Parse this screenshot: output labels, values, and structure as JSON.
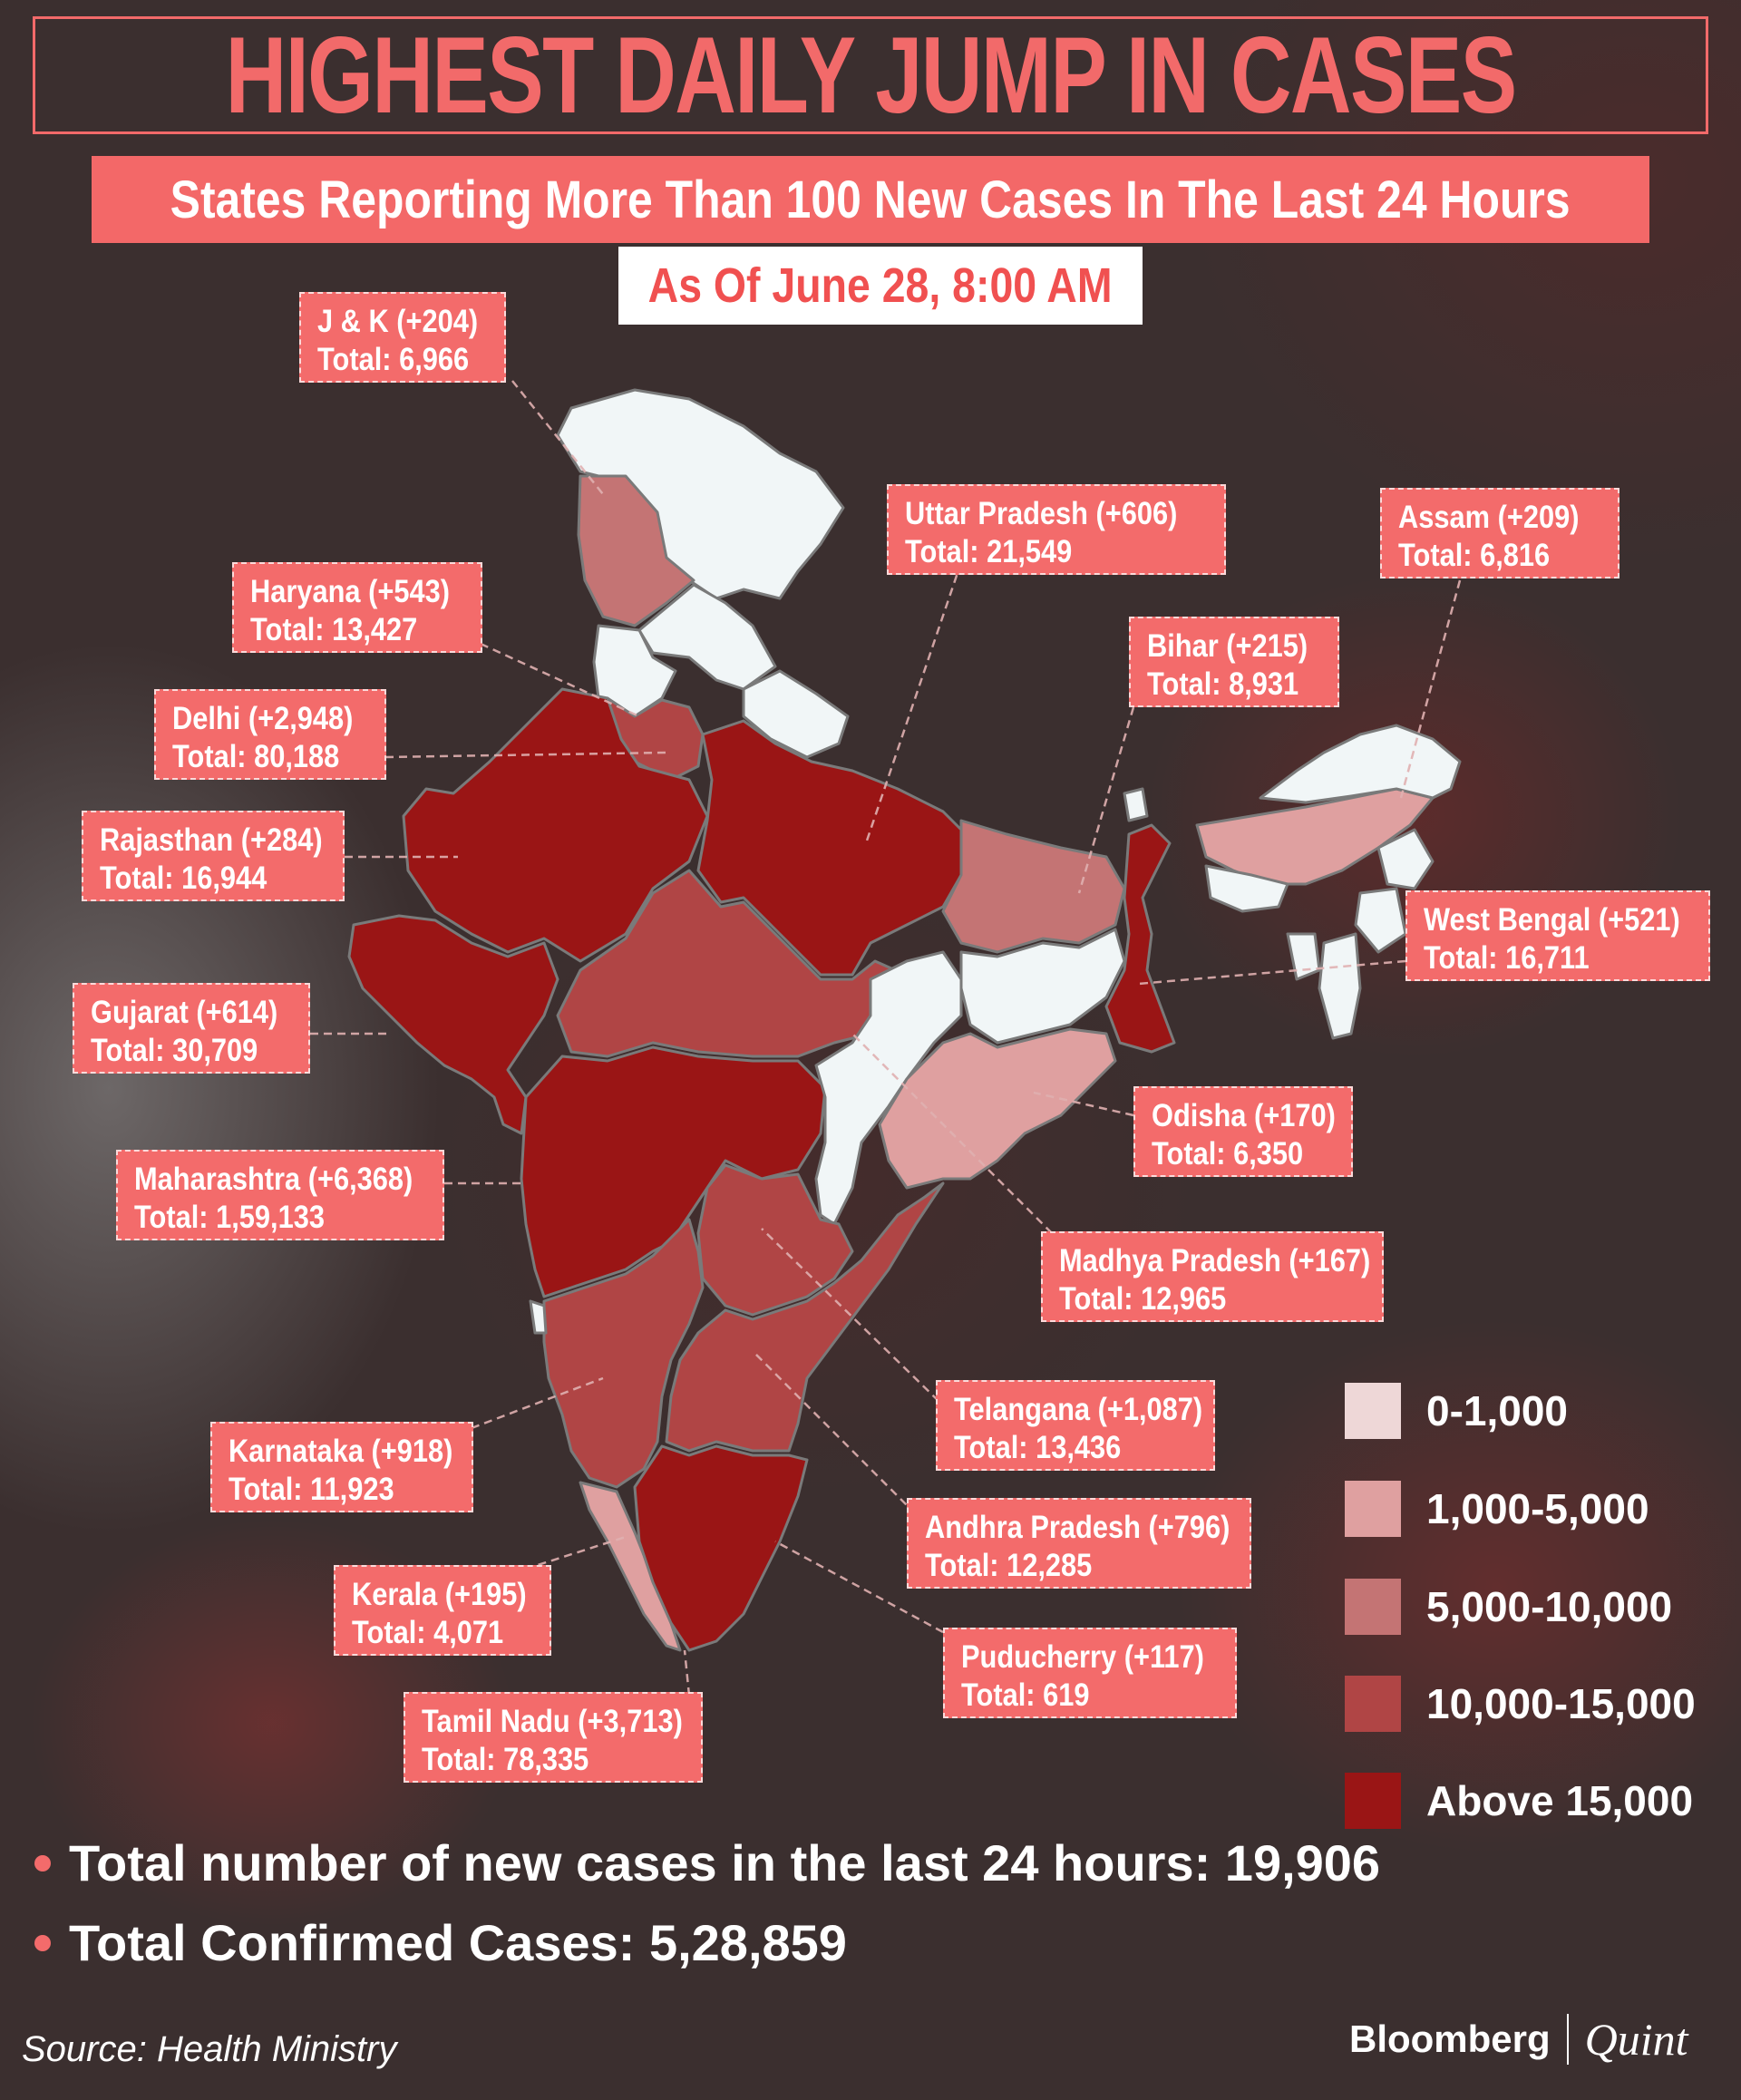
{
  "header": {
    "title": "HIGHEST DAILY JUMP IN CASES",
    "subtitle": "States Reporting More Than 100 New Cases In The Last 24 Hours",
    "date": "As Of June 28, 8:00 AM"
  },
  "states": [
    {
      "name": "J & K",
      "new_cases": "+204",
      "total": "6,966",
      "line1": "J & K (+204)",
      "line2": "Total: 6,966"
    },
    {
      "name": "Uttar Pradesh",
      "new_cases": "+606",
      "total": "21,549",
      "line1": "Uttar Pradesh (+606)",
      "line2": "Total: 21,549"
    },
    {
      "name": "Assam",
      "new_cases": "+209",
      "total": "6,816",
      "line1": "Assam (+209)",
      "line2": "Total: 6,816"
    },
    {
      "name": "Haryana",
      "new_cases": "+543",
      "total": "13,427",
      "line1": "Haryana (+543)",
      "line2": "Total: 13,427"
    },
    {
      "name": "Bihar",
      "new_cases": "+215",
      "total": "8,931",
      "line1": "Bihar (+215)",
      "line2": "Total: 8,931"
    },
    {
      "name": "Delhi",
      "new_cases": "+2,948",
      "total": "80,188",
      "line1": "Delhi (+2,948)",
      "line2": "Total: 80,188"
    },
    {
      "name": "Rajasthan",
      "new_cases": "+284",
      "total": "16,944",
      "line1": "Rajasthan (+284)",
      "line2": "Total: 16,944"
    },
    {
      "name": "West Bengal",
      "new_cases": "+521",
      "total": "16,711",
      "line1": "West Bengal (+521)",
      "line2": "Total: 16,711"
    },
    {
      "name": "Gujarat",
      "new_cases": "+614",
      "total": "30,709",
      "line1": "Gujarat (+614)",
      "line2": "Total: 30,709"
    },
    {
      "name": "Odisha",
      "new_cases": "+170",
      "total": "6,350",
      "line1": "Odisha (+170)",
      "line2": "Total: 6,350"
    },
    {
      "name": "Maharashtra",
      "new_cases": "+6,368",
      "total": "1,59,133",
      "line1": "Maharashtra (+6,368)",
      "line2": "Total: 1,59,133"
    },
    {
      "name": "Madhya Pradesh",
      "new_cases": "+167",
      "total": "12,965",
      "line1": "Madhya Pradesh (+167)",
      "line2": "Total: 12,965"
    },
    {
      "name": "Telangana",
      "new_cases": "+1,087",
      "total": "13,436",
      "line1": "Telangana (+1,087)",
      "line2": "Total: 13,436"
    },
    {
      "name": "Karnataka",
      "new_cases": "+918",
      "total": "11,923",
      "line1": "Karnataka (+918)",
      "line2": "Total: 11,923"
    },
    {
      "name": "Andhra Pradesh",
      "new_cases": "+796",
      "total": "12,285",
      "line1": "Andhra Pradesh (+796)",
      "line2": "Total: 12,285"
    },
    {
      "name": "Kerala",
      "new_cases": "+195",
      "total": "4,071",
      "line1": "Kerala (+195)",
      "line2": "Total: 4,071"
    },
    {
      "name": "Puducherry",
      "new_cases": "+117",
      "total": "619",
      "line1": "Puducherry (+117)",
      "line2": "Total: 619"
    },
    {
      "name": "Tamil Nadu",
      "new_cases": "+3,713",
      "total": "78,335",
      "line1": "Tamil Nadu (+3,713)",
      "line2": "Total: 78,335"
    }
  ],
  "legend": [
    {
      "label": "0-1,000",
      "color": "#eed7d7"
    },
    {
      "label": "1,000-5,000",
      "color": "#dfa0a0"
    },
    {
      "label": "5,000-10,000",
      "color": "#c47474"
    },
    {
      "label": "10,000-15,000",
      "color": "#b04545"
    },
    {
      "label": "Above 15,000",
      "color": "#9a1515"
    }
  ],
  "summary": {
    "new_cases": "Total number of new cases in the last 24 hours: 19,906",
    "confirmed": "Total Confirmed Cases: 5,28,859"
  },
  "footer": {
    "source": "Source: Health Ministry",
    "brand_left": "Bloomberg",
    "brand_right": "Quint"
  },
  "colors": {
    "accent": "#f36b6b",
    "fill_white": "#f1f6f7",
    "fill_1k_5k": "#dfa0a0",
    "fill_5k_10k": "#c47474",
    "fill_10k_15k": "#b04545",
    "fill_above_15k": "#9a1515"
  }
}
